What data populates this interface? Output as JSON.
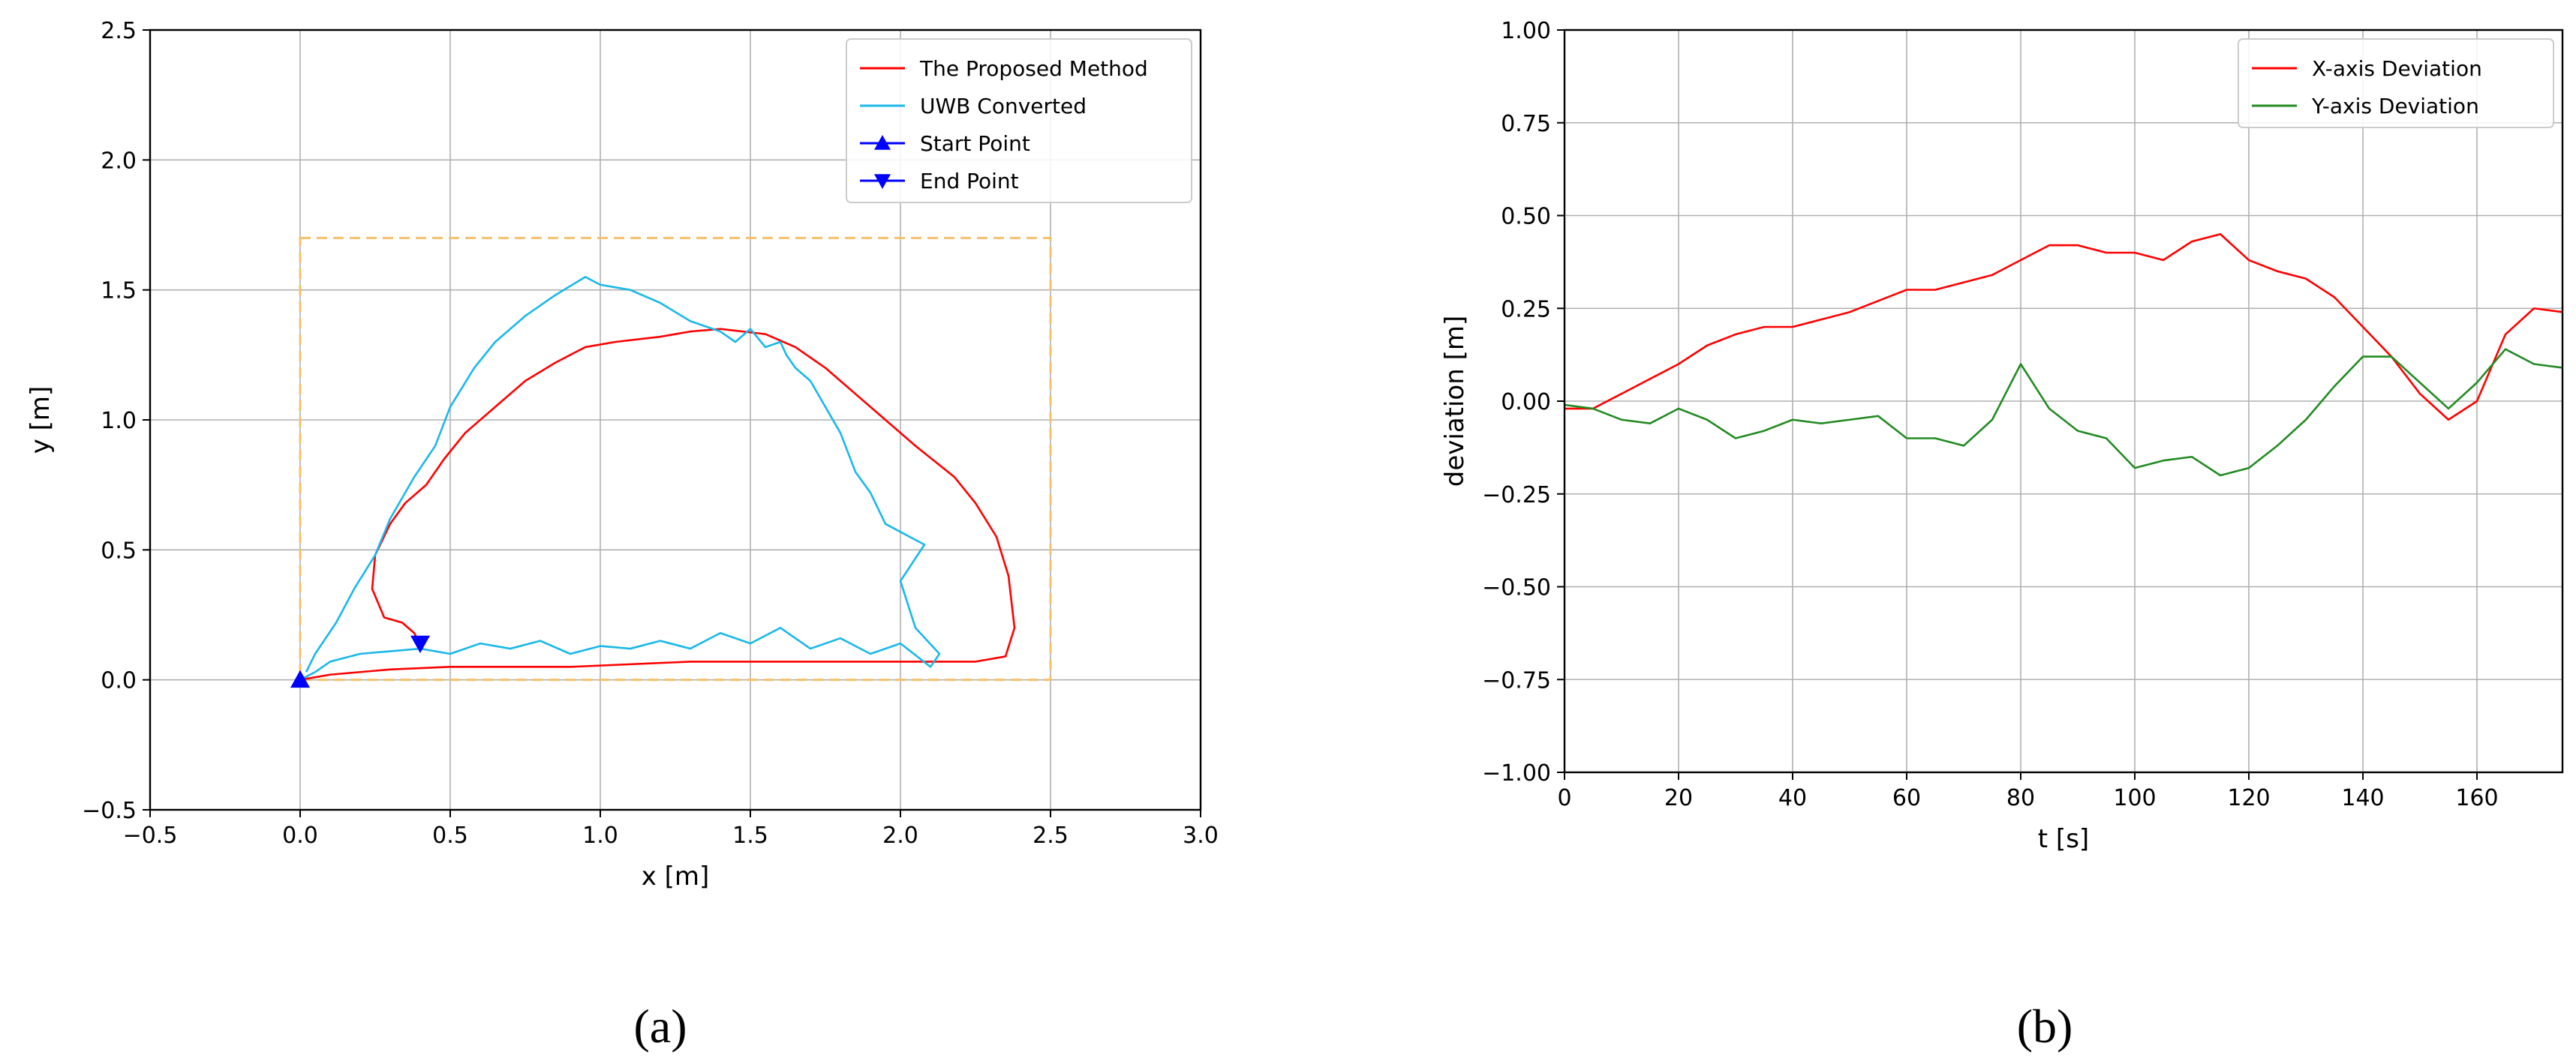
{
  "chart_data": [
    {
      "type": "line",
      "panel_label": "(a)",
      "xlabel": "x [m]",
      "ylabel": "y [m]",
      "xlim": [
        -0.5,
        3.0
      ],
      "ylim": [
        -0.5,
        2.5
      ],
      "xticks": [
        -0.5,
        0.0,
        0.5,
        1.0,
        1.5,
        2.0,
        2.5,
        3.0
      ],
      "yticks": [
        -0.5,
        0.0,
        0.5,
        1.0,
        1.5,
        2.0,
        2.5
      ],
      "xtick_labels": [
        "−0.5",
        "0.0",
        "0.5",
        "1.0",
        "1.5",
        "2.0",
        "2.5",
        "3.0"
      ],
      "ytick_labels": [
        "−0.5",
        "0.0",
        "0.5",
        "1.0",
        "1.5",
        "2.0",
        "2.5"
      ],
      "grid": true,
      "legend_position": "top-right",
      "legend": [
        "The Proposed Method",
        "UWB Converted",
        "Start Point",
        "End Point"
      ],
      "reference_rectangle": {
        "x": [
          0.0,
          2.5
        ],
        "y": [
          0.0,
          1.7
        ],
        "color": "#f5c06a"
      },
      "series": [
        {
          "name": "The Proposed Method",
          "color": "#ff0000",
          "x": [
            0.0,
            0.1,
            0.3,
            0.5,
            0.7,
            0.9,
            1.1,
            1.3,
            1.5,
            1.7,
            1.9,
            2.1,
            2.25,
            2.35,
            2.38,
            2.36,
            2.32,
            2.25,
            2.18,
            2.05,
            1.9,
            1.75,
            1.65,
            1.55,
            1.4,
            1.3,
            1.2,
            1.05,
            0.95,
            0.85,
            0.75,
            0.65,
            0.55,
            0.48,
            0.42,
            0.35,
            0.3,
            0.25,
            0.24,
            0.28,
            0.34,
            0.38,
            0.4
          ],
          "y": [
            0.0,
            0.02,
            0.04,
            0.05,
            0.05,
            0.05,
            0.06,
            0.07,
            0.07,
            0.07,
            0.07,
            0.07,
            0.07,
            0.09,
            0.2,
            0.4,
            0.55,
            0.68,
            0.78,
            0.9,
            1.05,
            1.2,
            1.28,
            1.33,
            1.35,
            1.34,
            1.32,
            1.3,
            1.28,
            1.22,
            1.15,
            1.05,
            0.95,
            0.85,
            0.75,
            0.68,
            0.6,
            0.48,
            0.35,
            0.24,
            0.22,
            0.18,
            0.14
          ]
        },
        {
          "name": "UWB Converted",
          "color": "#1ab8ea",
          "x": [
            0.0,
            0.05,
            0.1,
            0.2,
            0.3,
            0.4,
            0.5,
            0.6,
            0.7,
            0.8,
            0.9,
            1.0,
            1.1,
            1.2,
            1.3,
            1.4,
            1.5,
            1.6,
            1.7,
            1.8,
            1.9,
            2.0,
            2.1,
            2.13,
            2.05,
            2.0,
            2.08,
            1.95,
            1.9,
            1.85,
            1.8,
            1.75,
            1.7,
            1.65,
            1.62,
            1.6,
            1.55,
            1.5,
            1.45,
            1.4,
            1.3,
            1.2,
            1.1,
            1.0,
            0.95,
            0.85,
            0.75,
            0.65,
            0.58,
            0.5,
            0.45,
            0.38,
            0.3,
            0.25,
            0.18,
            0.12,
            0.05,
            0.02
          ],
          "y": [
            0.0,
            0.03,
            0.07,
            0.1,
            0.11,
            0.12,
            0.1,
            0.14,
            0.12,
            0.15,
            0.1,
            0.13,
            0.12,
            0.15,
            0.12,
            0.18,
            0.14,
            0.2,
            0.12,
            0.16,
            0.1,
            0.14,
            0.05,
            0.1,
            0.2,
            0.38,
            0.52,
            0.6,
            0.72,
            0.8,
            0.95,
            1.05,
            1.15,
            1.2,
            1.25,
            1.3,
            1.28,
            1.35,
            1.3,
            1.34,
            1.38,
            1.45,
            1.5,
            1.52,
            1.55,
            1.48,
            1.4,
            1.3,
            1.2,
            1.05,
            0.9,
            0.78,
            0.62,
            0.48,
            0.35,
            0.22,
            0.1,
            0.03
          ]
        },
        {
          "name": "Start Point",
          "color": "#0000ff",
          "marker": "triangle-up",
          "x": [
            0.0
          ],
          "y": [
            0.0
          ]
        },
        {
          "name": "End Point",
          "color": "#0000ff",
          "marker": "triangle-down",
          "x": [
            0.4
          ],
          "y": [
            0.14
          ]
        }
      ]
    },
    {
      "type": "line",
      "panel_label": "(b)",
      "xlabel": "t [s]",
      "ylabel": "deviation [m]",
      "xlim": [
        0,
        175
      ],
      "ylim": [
        -1.0,
        1.0
      ],
      "xticks": [
        0,
        20,
        40,
        60,
        80,
        100,
        120,
        140,
        160
      ],
      "yticks": [
        -1.0,
        -0.75,
        -0.5,
        -0.25,
        0.0,
        0.25,
        0.5,
        0.75,
        1.0
      ],
      "xtick_labels": [
        "0",
        "20",
        "40",
        "60",
        "80",
        "100",
        "120",
        "140",
        "160"
      ],
      "ytick_labels": [
        "−1.00",
        "−0.75",
        "−0.50",
        "−0.25",
        "0.00",
        "0.25",
        "0.50",
        "0.75",
        "1.00"
      ],
      "grid": true,
      "legend_position": "top-right",
      "legend": [
        "X-axis Deviation",
        "Y-axis Deviation"
      ],
      "series": [
        {
          "name": "X-axis Deviation",
          "color": "#ff0000",
          "x": [
            0,
            5,
            10,
            15,
            20,
            25,
            30,
            35,
            40,
            45,
            50,
            55,
            60,
            65,
            70,
            75,
            80,
            85,
            90,
            95,
            100,
            105,
            110,
            115,
            120,
            125,
            130,
            135,
            140,
            145,
            150,
            155,
            160,
            165,
            170,
            175
          ],
          "y": [
            -0.02,
            -0.02,
            0.02,
            0.06,
            0.1,
            0.15,
            0.18,
            0.2,
            0.2,
            0.22,
            0.24,
            0.27,
            0.3,
            0.3,
            0.32,
            0.34,
            0.38,
            0.42,
            0.42,
            0.4,
            0.4,
            0.38,
            0.43,
            0.45,
            0.38,
            0.35,
            0.33,
            0.28,
            0.2,
            0.12,
            0.02,
            -0.05,
            0.0,
            0.18,
            0.25,
            0.24
          ]
        },
        {
          "name": "Y-axis Deviation",
          "color": "#228b22",
          "x": [
            0,
            5,
            10,
            15,
            20,
            25,
            30,
            35,
            40,
            45,
            50,
            55,
            60,
            65,
            70,
            75,
            80,
            85,
            90,
            95,
            100,
            105,
            110,
            115,
            120,
            125,
            130,
            135,
            140,
            145,
            150,
            155,
            160,
            165,
            170,
            175
          ],
          "y": [
            -0.01,
            -0.02,
            -0.05,
            -0.06,
            -0.02,
            -0.05,
            -0.1,
            -0.08,
            -0.05,
            -0.06,
            -0.05,
            -0.04,
            -0.1,
            -0.1,
            -0.12,
            -0.05,
            0.1,
            -0.02,
            -0.08,
            -0.1,
            -0.18,
            -0.16,
            -0.15,
            -0.2,
            -0.18,
            -0.12,
            -0.05,
            0.04,
            0.12,
            0.12,
            0.05,
            -0.02,
            0.05,
            0.14,
            0.1,
            0.09
          ]
        }
      ]
    }
  ]
}
